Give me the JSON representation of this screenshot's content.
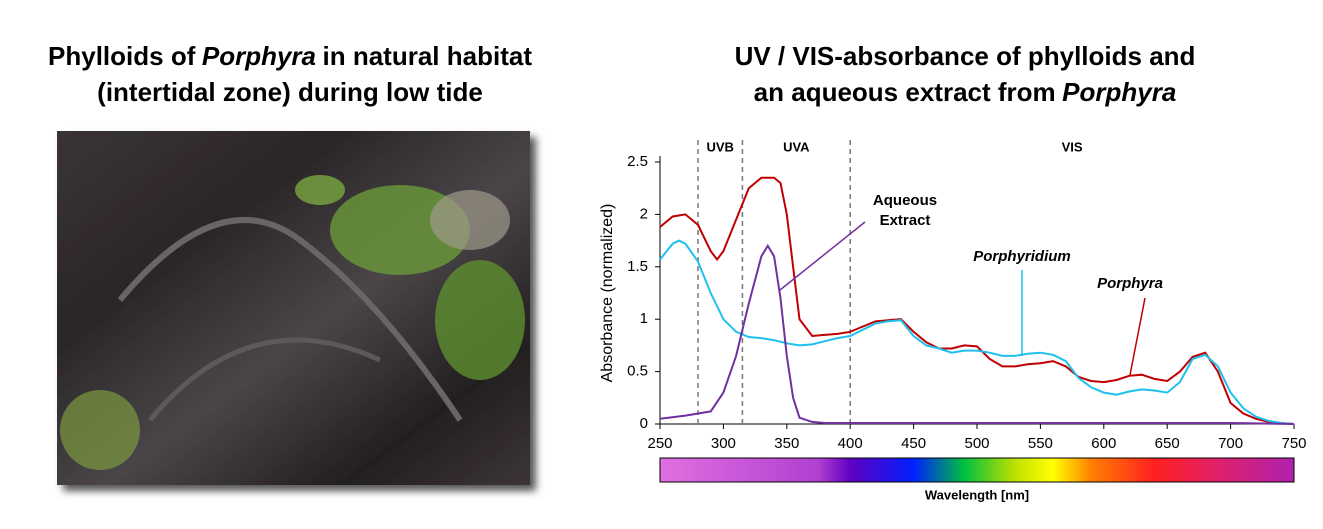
{
  "photo": {
    "title": [
      [
        {
          "text": "Phylloids of"
        },
        {
          "text": "Porphyra",
          "italic": true
        },
        {
          "text": "in natural habitat"
        }
      ],
      [
        {
          "text": "(intertidal zone) during low tide"
        }
      ]
    ]
  },
  "chart_data": {
    "type": "line",
    "title": [
      [
        {
          "text": "UV / VIS-absorbance of phylloids and"
        }
      ],
      [
        {
          "text": "an aqueous extract from"
        },
        {
          "text": "Porphyra",
          "italic": true
        }
      ]
    ],
    "ylabel": "Absorbance (normalized)",
    "xlabel": "Wavelength [nm]",
    "xlim": [
      250,
      750
    ],
    "xticks": [
      250,
      300,
      350,
      400,
      450,
      500,
      550,
      600,
      650,
      700,
      750
    ],
    "ylim": [
      0,
      2.5
    ],
    "yticks": [
      0,
      0.5,
      1,
      1.5,
      2,
      2.5
    ],
    "regions": [
      {
        "label": "UVB",
        "from": 280,
        "to": 315
      },
      {
        "label": "UVA",
        "from": 315,
        "to": 400
      },
      {
        "label": "VIS",
        "from": 400,
        "to": 750
      }
    ],
    "series": [
      {
        "name": "Porphyra",
        "italic": true,
        "color": "#c00000",
        "x": [
          250,
          260,
          270,
          280,
          290,
          295,
          300,
          310,
          320,
          330,
          340,
          345,
          350,
          355,
          360,
          370,
          380,
          390,
          400,
          410,
          420,
          430,
          440,
          450,
          460,
          470,
          480,
          490,
          500,
          510,
          520,
          530,
          540,
          550,
          560,
          570,
          580,
          590,
          600,
          610,
          620,
          630,
          640,
          650,
          660,
          670,
          680,
          690,
          700,
          710,
          720,
          730,
          740,
          750
        ],
        "values": [
          1.88,
          1.98,
          2.0,
          1.9,
          1.65,
          1.57,
          1.65,
          1.95,
          2.25,
          2.35,
          2.35,
          2.3,
          2.0,
          1.5,
          1.0,
          0.84,
          0.85,
          0.86,
          0.88,
          0.93,
          0.98,
          0.99,
          1.0,
          0.88,
          0.78,
          0.72,
          0.72,
          0.75,
          0.74,
          0.62,
          0.55,
          0.55,
          0.57,
          0.58,
          0.6,
          0.55,
          0.45,
          0.41,
          0.4,
          0.42,
          0.46,
          0.47,
          0.43,
          0.41,
          0.5,
          0.64,
          0.68,
          0.5,
          0.2,
          0.1,
          0.05,
          0.02,
          0.01,
          0.0
        ]
      },
      {
        "name": "Porphyridium",
        "italic": true,
        "color": "#1ec0ee",
        "x": [
          250,
          260,
          265,
          270,
          280,
          290,
          300,
          310,
          320,
          330,
          340,
          350,
          360,
          370,
          380,
          390,
          400,
          410,
          420,
          430,
          440,
          450,
          460,
          470,
          480,
          490,
          500,
          510,
          520,
          530,
          540,
          550,
          560,
          570,
          580,
          590,
          600,
          610,
          620,
          630,
          640,
          650,
          660,
          670,
          680,
          690,
          700,
          710,
          720,
          730,
          740,
          750
        ],
        "values": [
          1.57,
          1.72,
          1.75,
          1.72,
          1.55,
          1.25,
          1.0,
          0.88,
          0.83,
          0.82,
          0.8,
          0.77,
          0.75,
          0.76,
          0.79,
          0.82,
          0.84,
          0.9,
          0.96,
          0.98,
          0.99,
          0.84,
          0.75,
          0.72,
          0.68,
          0.7,
          0.7,
          0.68,
          0.65,
          0.65,
          0.67,
          0.68,
          0.66,
          0.6,
          0.44,
          0.35,
          0.3,
          0.28,
          0.31,
          0.33,
          0.32,
          0.3,
          0.4,
          0.62,
          0.66,
          0.55,
          0.3,
          0.15,
          0.07,
          0.03,
          0.01,
          0.0
        ]
      },
      {
        "name": "Aqueous Extract",
        "italic": false,
        "color": "#7030a0",
        "x": [
          250,
          270,
          290,
          300,
          310,
          320,
          330,
          335,
          340,
          345,
          350,
          355,
          360,
          370,
          380,
          400,
          500,
          600,
          700,
          750
        ],
        "values": [
          0.05,
          0.08,
          0.12,
          0.3,
          0.65,
          1.15,
          1.6,
          1.7,
          1.6,
          1.2,
          0.65,
          0.25,
          0.06,
          0.02,
          0.01,
          0.01,
          0.01,
          0.01,
          0.01,
          0.0
        ]
      }
    ]
  }
}
